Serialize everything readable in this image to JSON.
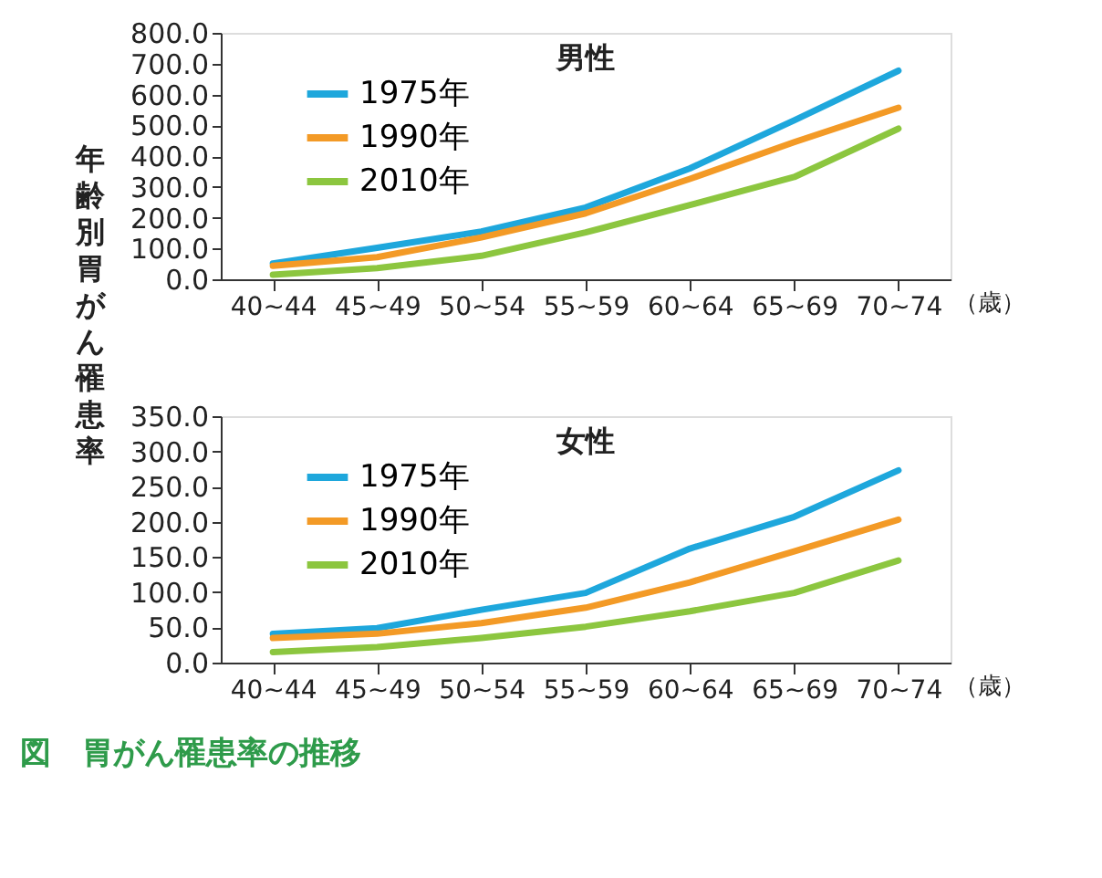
{
  "chart_data": [
    {
      "type": "line",
      "title": "男性",
      "ylabel": "年齢別胃がん罹患率",
      "xlabel": "（歳）",
      "categories": [
        "40~44",
        "45~49",
        "50~54",
        "55~59",
        "60~64",
        "65~69",
        "70~74"
      ],
      "series": [
        {
          "name": "1975年",
          "color": "#1ea7dc",
          "values": [
            51,
            102,
            155,
            233,
            360,
            516,
            677
          ]
        },
        {
          "name": "1990年",
          "color": "#f39a26",
          "values": [
            44,
            72,
            136,
            214,
            326,
            445,
            557
          ]
        },
        {
          "name": "2010年",
          "color": "#8cc63f",
          "values": [
            15,
            36,
            76,
            152,
            241,
            332,
            489
          ]
        }
      ],
      "ylim": [
        0,
        800
      ],
      "yticks": [
        {
          "value": 0,
          "label": "0.0"
        },
        {
          "value": 100,
          "label": "100.0"
        },
        {
          "value": 200,
          "label": "200.0"
        },
        {
          "value": 300,
          "label": "300.0"
        },
        {
          "value": 400,
          "label": "400.0"
        },
        {
          "value": 500,
          "label": "500.0"
        },
        {
          "value": 600,
          "label": "600.0"
        },
        {
          "value": 700,
          "label": "700.0"
        },
        {
          "value": 800,
          "label": "800.0"
        }
      ],
      "grid": false,
      "legend": "top left",
      "marker": "none",
      "line_style": "solid"
    },
    {
      "type": "line",
      "title": "女性",
      "xlabel": "（歳）",
      "categories": [
        "40~44",
        "45~49",
        "50~54",
        "55~59",
        "60~64",
        "65~69",
        "70~74"
      ],
      "series": [
        {
          "name": "1975年",
          "color": "#1ea7dc",
          "values": [
            41,
            49,
            75,
            99,
            162,
            207,
            273
          ]
        },
        {
          "name": "1990年",
          "color": "#f39a26",
          "values": [
            35,
            41,
            56,
            78,
            114,
            158,
            203
          ]
        },
        {
          "name": "2010年",
          "color": "#8cc63f",
          "values": [
            15,
            22,
            35,
            51,
            73,
            99,
            145
          ]
        }
      ],
      "ylim": [
        0,
        350
      ],
      "yticks": [
        {
          "value": 0,
          "label": "0.0"
        },
        {
          "value": 50,
          "label": "50.0"
        },
        {
          "value": 100,
          "label": "100.0"
        },
        {
          "value": 150,
          "label": "150.0"
        },
        {
          "value": 200,
          "label": "200.0"
        },
        {
          "value": 250,
          "label": "250.0"
        },
        {
          "value": 300,
          "label": "300.0"
        },
        {
          "value": 350,
          "label": "350.0"
        }
      ],
      "grid": false,
      "legend": "top left",
      "marker": "none",
      "line_style": "solid",
      "annotations": [
        "図　胃がん罹患率の推移"
      ]
    }
  ]
}
